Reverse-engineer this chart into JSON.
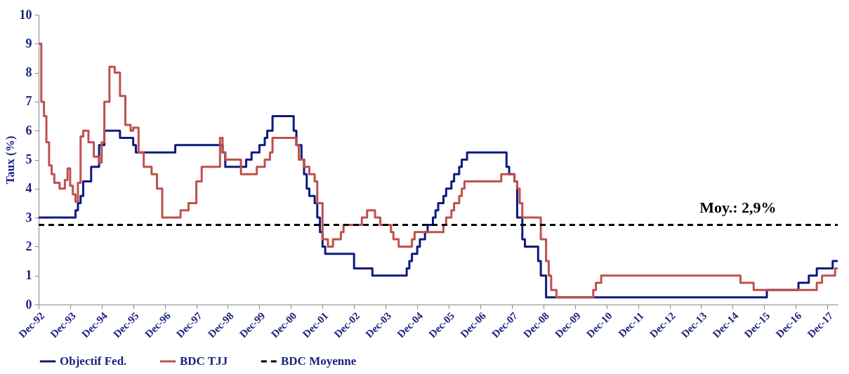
{
  "chart_data": {
    "type": "step",
    "ylabel": "Taux (%)",
    "xlim": [
      "1992-12",
      "2018-04"
    ],
    "ylim": [
      0,
      10
    ],
    "yticks": [
      0,
      1,
      2,
      3,
      4,
      5,
      6,
      7,
      8,
      9,
      10
    ],
    "xticks": [
      {
        "value": "1992-12",
        "label": "Dec-92"
      },
      {
        "value": "1993-12",
        "label": "Dec-93"
      },
      {
        "value": "1994-12",
        "label": "Dec-94"
      },
      {
        "value": "1995-12",
        "label": "Dec-95"
      },
      {
        "value": "1996-12",
        "label": "Dec-96"
      },
      {
        "value": "1997-12",
        "label": "Dec-97"
      },
      {
        "value": "1998-12",
        "label": "Dec-98"
      },
      {
        "value": "1999-12",
        "label": "Dec-99"
      },
      {
        "value": "2000-12",
        "label": "Dec-00"
      },
      {
        "value": "2001-12",
        "label": "Dec-01"
      },
      {
        "value": "2002-12",
        "label": "Dec-02"
      },
      {
        "value": "2003-12",
        "label": "Dec-03"
      },
      {
        "value": "2004-12",
        "label": "Dec-04"
      },
      {
        "value": "2005-12",
        "label": "Dec-05"
      },
      {
        "value": "2006-12",
        "label": "Dec-06"
      },
      {
        "value": "2007-12",
        "label": "Dec-07"
      },
      {
        "value": "2008-12",
        "label": "Dec-08"
      },
      {
        "value": "2009-12",
        "label": "Dec-09"
      },
      {
        "value": "2010-12",
        "label": "Dec-10"
      },
      {
        "value": "2011-12",
        "label": "Dec-11"
      },
      {
        "value": "2012-12",
        "label": "Dec-12"
      },
      {
        "value": "2013-12",
        "label": "Dec-13"
      },
      {
        "value": "2014-12",
        "label": "Dec-14"
      },
      {
        "value": "2015-12",
        "label": "Dec-15"
      },
      {
        "value": "2016-12",
        "label": "Dec-16"
      },
      {
        "value": "2017-12",
        "label": "Dec-17"
      }
    ],
    "grid": false,
    "legend": "bottom",
    "marker": "none",
    "annotations": [
      {
        "text": "Moy.: 2,9%",
        "x": "2015-02",
        "y": 2.75
      }
    ],
    "series": [
      {
        "name": "Objectif Fed.",
        "color": "#0d1a80",
        "line_style": "solid",
        "x": [
          "1992-12",
          "1994-02",
          "1994-03",
          "1994-04",
          "1994-05",
          "1994-08",
          "1994-11",
          "1995-01",
          "1995-07",
          "1995-12",
          "1996-01",
          "1997-04",
          "1998-10",
          "1998-11",
          "1999-07",
          "1999-09",
          "1999-12",
          "2000-02",
          "2000-03",
          "2000-05",
          "2001-01",
          "2001-02",
          "2001-04",
          "2001-05",
          "2001-06",
          "2001-07",
          "2001-09",
          "2001-10",
          "2001-11",
          "2001-12",
          "2002-01",
          "2002-12",
          "2003-07",
          "2004-08",
          "2004-09",
          "2004-10",
          "2004-12",
          "2005-01",
          "2005-03",
          "2005-04",
          "2005-06",
          "2005-07",
          "2005-08",
          "2005-10",
          "2005-11",
          "2006-01",
          "2006-02",
          "2006-04",
          "2006-05",
          "2006-07",
          "2007-10",
          "2007-11",
          "2008-01",
          "2008-02",
          "2008-04",
          "2008-05",
          "2008-10",
          "2008-11",
          "2009-01",
          "2016-01",
          "2017-01",
          "2017-05",
          "2017-08",
          "2018-02",
          "2018-04"
        ],
        "values": [
          3.0,
          3.25,
          3.5,
          3.75,
          4.25,
          4.75,
          5.5,
          6.0,
          5.75,
          5.5,
          5.25,
          5.5,
          5.25,
          4.75,
          5.0,
          5.25,
          5.5,
          5.75,
          6.0,
          6.5,
          6.0,
          5.5,
          5.0,
          4.5,
          4.0,
          3.75,
          3.5,
          3.0,
          2.5,
          2.0,
          1.75,
          1.25,
          1.0,
          1.25,
          1.5,
          1.75,
          2.0,
          2.25,
          2.5,
          2.75,
          3.0,
          3.25,
          3.5,
          3.75,
          4.0,
          4.25,
          4.5,
          4.75,
          5.0,
          5.25,
          4.75,
          4.5,
          4.25,
          3.0,
          2.25,
          2.0,
          1.5,
          1.0,
          0.25,
          0.5,
          0.75,
          1.0,
          1.25,
          1.5,
          1.5
        ]
      },
      {
        "name": "BDC TJJ",
        "color": "#c0504d",
        "line_style": "solid",
        "x": [
          "1992-12",
          "1993-01",
          "1993-02",
          "1993-03",
          "1993-04",
          "1993-05",
          "1993-06",
          "1993-08",
          "1993-10",
          "1993-11",
          "1993-12",
          "1994-01",
          "1994-02",
          "1994-03",
          "1994-04",
          "1994-05",
          "1994-07",
          "1994-09",
          "1994-11",
          "1994-12",
          "1995-01",
          "1995-03",
          "1995-05",
          "1995-07",
          "1995-09",
          "1995-11",
          "1995-12",
          "1996-02",
          "1996-04",
          "1996-07",
          "1996-09",
          "1996-11",
          "1997-06",
          "1997-09",
          "1997-12",
          "1998-02",
          "1998-09",
          "1998-10",
          "1998-11",
          "1999-05",
          "1999-11",
          "2000-02",
          "2000-04",
          "2000-05",
          "2001-02",
          "2001-03",
          "2001-05",
          "2001-07",
          "2001-09",
          "2001-10",
          "2001-12",
          "2002-02",
          "2002-04",
          "2002-07",
          "2002-08",
          "2003-03",
          "2003-05",
          "2003-08",
          "2003-10",
          "2004-02",
          "2004-03",
          "2004-05",
          "2004-10",
          "2004-11",
          "2005-10",
          "2005-11",
          "2006-01",
          "2006-02",
          "2006-04",
          "2006-05",
          "2006-06",
          "2007-08",
          "2008-01",
          "2008-02",
          "2008-03",
          "2008-04",
          "2008-11",
          "2009-01",
          "2009-02",
          "2009-03",
          "2009-05",
          "2010-07",
          "2010-08",
          "2010-10",
          "2015-03",
          "2015-08",
          "2017-08",
          "2017-10",
          "2018-03",
          "2018-04"
        ],
        "values": [
          9.0,
          7.0,
          6.5,
          5.6,
          4.8,
          4.5,
          4.2,
          4.0,
          4.3,
          4.7,
          4.1,
          3.8,
          3.55,
          4.2,
          5.8,
          6.0,
          5.6,
          5.1,
          4.9,
          5.6,
          7.0,
          8.2,
          8.0,
          7.2,
          6.2,
          6.0,
          6.1,
          5.25,
          4.75,
          4.5,
          4.0,
          3.0,
          3.25,
          3.5,
          4.25,
          4.75,
          5.75,
          5.25,
          5.0,
          4.5,
          4.75,
          5.0,
          5.25,
          5.75,
          5.5,
          5.0,
          4.75,
          4.5,
          4.25,
          3.5,
          2.25,
          2.0,
          2.25,
          2.5,
          2.75,
          3.0,
          3.25,
          3.0,
          2.75,
          2.5,
          2.25,
          2.0,
          2.25,
          2.5,
          2.75,
          3.0,
          3.25,
          3.5,
          3.75,
          4.0,
          4.25,
          4.5,
          4.25,
          4.0,
          3.5,
          3.0,
          2.25,
          1.5,
          1.0,
          0.5,
          0.25,
          0.5,
          0.75,
          1.0,
          0.75,
          0.5,
          0.75,
          1.0,
          1.25,
          1.25
        ]
      },
      {
        "name": "BDC Moyenne",
        "color": "#000000",
        "type": "line",
        "line_style": "dashed",
        "x": [
          "1992-12",
          "2018-04"
        ],
        "values": [
          2.75,
          2.75
        ]
      }
    ]
  }
}
